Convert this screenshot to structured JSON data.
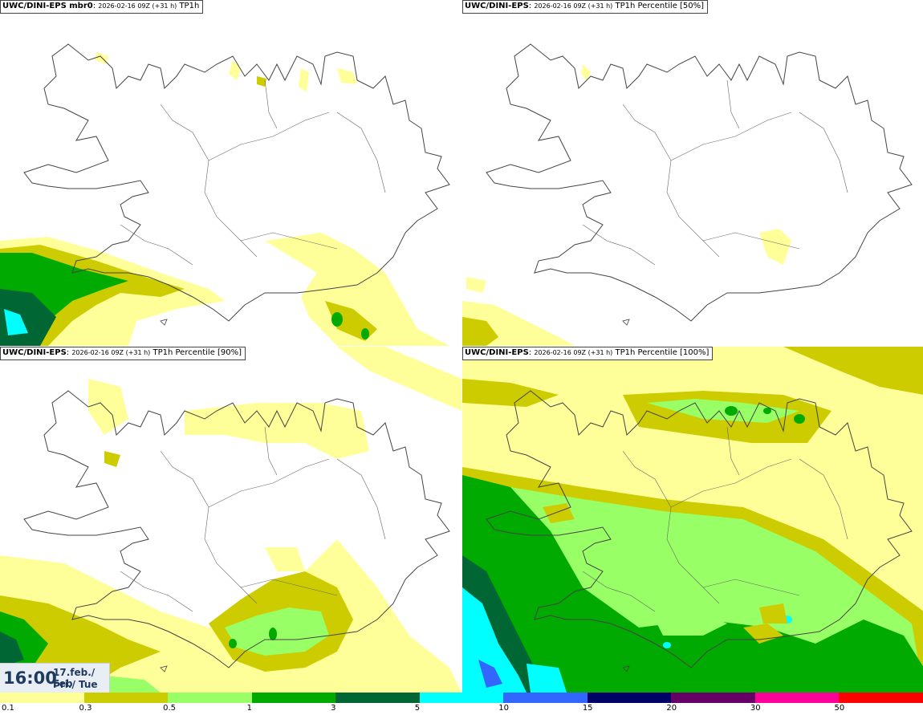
{
  "panels": [
    {
      "id": "p1",
      "model": "UWC/DINI-EPS",
      "member": " mbr0",
      "sep": ": ",
      "run": "2026-02-16 09Z (+31 h)",
      "field": " TP1h"
    },
    {
      "id": "p2",
      "model": "UWC/DINI-EPS",
      "member": "",
      "sep": ": ",
      "run": "2026-02-16 09Z (+31 h)",
      "field": " TP1h Percentile [50%]"
    },
    {
      "id": "p3",
      "model": "UWC/DINI-EPS",
      "member": "",
      "sep": ": ",
      "run": "2026-02-16 09Z (+31 h)",
      "field": " TP1h Percentile [90%]"
    },
    {
      "id": "p4",
      "model": "UWC/DINI-EPS",
      "member": "",
      "sep": ": ",
      "run": "2026-02-16 09Z (+31 h)",
      "field": " TP1h Percentile [100%]"
    }
  ],
  "valid_time": {
    "time": "16:00",
    "date": "17.feb./ Feb",
    "day": "Þri./ Tue"
  },
  "colorbar": {
    "labels": [
      "0.1",
      "0.3",
      "0.5",
      "1",
      "3",
      "5",
      "10",
      "15",
      "20",
      "30",
      "50"
    ],
    "colors": [
      "#ffff99",
      "#cccc00",
      "#99ff66",
      "#00aa00",
      "#006633",
      "#00ffff",
      "#3366ff",
      "#000066",
      "#660066",
      "#ff0099",
      "#ff0000"
    ]
  },
  "colors": {
    "light_yellow": "#ffff99",
    "olive": "#cccc00",
    "light_green": "#99ff66",
    "green": "#00aa00",
    "dark_green": "#006633",
    "cyan": "#00ffff",
    "blue": "#3366ff",
    "coast": "#444444"
  }
}
